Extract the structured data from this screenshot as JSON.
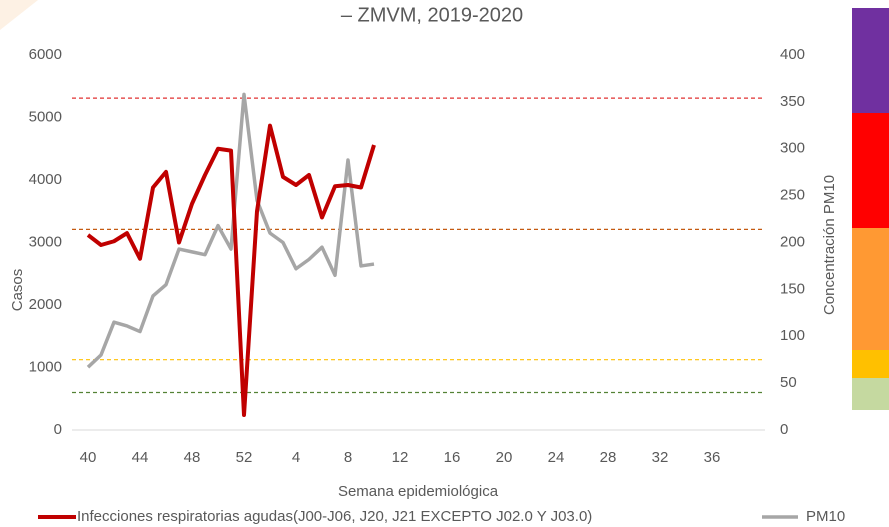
{
  "chart_data": {
    "type": "line",
    "title": "– ZMVM, 2019-2020",
    "x_label": "Semana epidemiológica",
    "y_label": "Casos",
    "y2_label": "Concentración PM10",
    "categories": [
      "40",
      null,
      null,
      null,
      "44",
      null,
      null,
      null,
      "48",
      null,
      null,
      null,
      "52",
      null,
      null,
      null,
      "4",
      null,
      null,
      null,
      "8",
      null,
      null,
      null,
      "12",
      null,
      null,
      null,
      "16",
      null,
      null,
      null,
      "20",
      null,
      null,
      null,
      "24",
      null,
      null,
      null,
      "28",
      null,
      null,
      null,
      "32",
      null,
      null,
      null,
      "36",
      null,
      null,
      null
    ],
    "series": [
      {
        "name": "Infecciones respiratorias agudas(J00-J06, J20, J21 EXCEPTO J02.0 Y J03.0)",
        "color": "#c00000",
        "axis": "y",
        "values": [
          3120,
          2960,
          3020,
          3150,
          2740,
          3880,
          4130,
          3000,
          3620,
          4080,
          4500,
          4470,
          240,
          3500,
          4870,
          4050,
          3920,
          4080,
          3400,
          3900,
          3920,
          3880,
          4560,
          null,
          null,
          null,
          null,
          null,
          null,
          null,
          null,
          null,
          null,
          null,
          null,
          null,
          null,
          null,
          null,
          null,
          null,
          null,
          null,
          null,
          null,
          null,
          null,
          null,
          null,
          null,
          null,
          null
        ]
      },
      {
        "name": "PM10",
        "color": "#a6a6a6",
        "axis": "y2",
        "values": [
          67,
          80,
          115,
          111,
          105,
          143,
          155,
          193,
          190,
          187,
          218,
          193,
          358,
          245,
          210,
          200,
          172,
          182,
          195,
          165,
          288,
          175,
          177,
          null,
          null,
          null,
          null,
          null,
          null,
          null,
          null,
          null,
          null,
          null,
          null,
          null,
          null,
          null,
          null,
          null,
          null,
          null,
          null,
          null,
          null,
          null,
          null,
          null,
          null,
          null,
          null,
          null
        ]
      }
    ],
    "ylim": [
      0,
      6000
    ],
    "yticks": [
      0,
      1000,
      2000,
      3000,
      4000,
      5000,
      6000
    ],
    "y2lim": [
      0,
      400
    ],
    "y2ticks": [
      0,
      50,
      100,
      150,
      200,
      250,
      300,
      350,
      400
    ],
    "reference_lines": [
      {
        "value": 354,
        "color": "#e03030",
        "axis": "y2"
      },
      {
        "value": 214,
        "color": "#c55a11",
        "axis": "y2"
      },
      {
        "value": 75,
        "color": "#ffc000",
        "axis": "y2"
      },
      {
        "value": 40,
        "color": "#548235",
        "axis": "y2"
      }
    ]
  }
}
